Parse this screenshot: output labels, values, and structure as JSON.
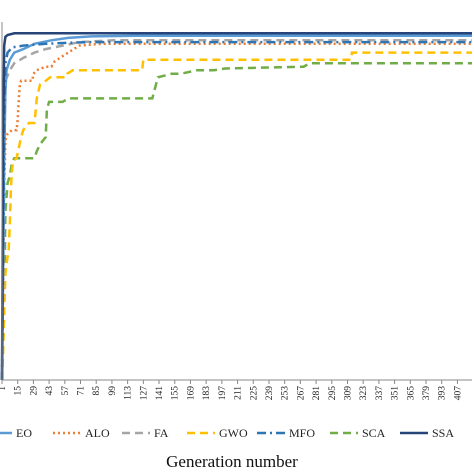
{
  "chart_data": {
    "type": "line",
    "title": "",
    "xlabel": "Generation number",
    "ylabel": "",
    "grid": false,
    "legend_position": "bottom",
    "x_ticks": [
      "1",
      "15",
      "29",
      "43",
      "57",
      "71",
      "85",
      "99",
      "113",
      "127",
      "141",
      "155",
      "169",
      "183",
      "197",
      "211",
      "225",
      "239",
      "253",
      "267",
      "281",
      "295",
      "309",
      "323",
      "337",
      "351",
      "365",
      "379",
      "393",
      "407"
    ],
    "xlim": [
      1,
      420
    ],
    "ylim": [
      0,
      1
    ],
    "series": [
      {
        "name": "EO",
        "color": "#5b9bd5",
        "dash": "solid",
        "points": [
          [
            1,
            0
          ],
          [
            2,
            0.3
          ],
          [
            3,
            0.62
          ],
          [
            4,
            0.82
          ],
          [
            5,
            0.88
          ],
          [
            8,
            0.91
          ],
          [
            12,
            0.93
          ],
          [
            20,
            0.94
          ],
          [
            30,
            0.955
          ],
          [
            45,
            0.965
          ],
          [
            60,
            0.972
          ],
          [
            80,
            0.976
          ],
          [
            120,
            0.978
          ],
          [
            420,
            0.978
          ]
        ]
      },
      {
        "name": "ALO",
        "color": "#ed7d31",
        "dash": "dotted",
        "points": [
          [
            1,
            0
          ],
          [
            2,
            0.25
          ],
          [
            3,
            0.55
          ],
          [
            4,
            0.68
          ],
          [
            6,
            0.7
          ],
          [
            10,
            0.71
          ],
          [
            14,
            0.71
          ],
          [
            15,
            0.74
          ],
          [
            16,
            0.8
          ],
          [
            17,
            0.84
          ],
          [
            18,
            0.85
          ],
          [
            28,
            0.85
          ],
          [
            29,
            0.87
          ],
          [
            32,
            0.88
          ],
          [
            40,
            0.89
          ],
          [
            45,
            0.89
          ],
          [
            48,
            0.905
          ],
          [
            55,
            0.92
          ],
          [
            60,
            0.93
          ],
          [
            70,
            0.95
          ],
          [
            90,
            0.955
          ],
          [
            420,
            0.955
          ]
        ]
      },
      {
        "name": "FA",
        "color": "#a5a5a5",
        "dash": "dashed",
        "points": [
          [
            1,
            0
          ],
          [
            2,
            0.45
          ],
          [
            3,
            0.75
          ],
          [
            4,
            0.85
          ],
          [
            8,
            0.88
          ],
          [
            12,
            0.9
          ],
          [
            20,
            0.915
          ],
          [
            30,
            0.93
          ],
          [
            40,
            0.94
          ],
          [
            55,
            0.95
          ],
          [
            70,
            0.96
          ],
          [
            100,
            0.965
          ],
          [
            420,
            0.965
          ]
        ]
      },
      {
        "name": "GWO",
        "color": "#ffc000",
        "dash": "dashed",
        "points": [
          [
            1,
            0
          ],
          [
            2,
            0.08
          ],
          [
            3,
            0.2
          ],
          [
            4,
            0.3
          ],
          [
            5,
            0.33
          ],
          [
            7,
            0.37
          ],
          [
            8,
            0.45
          ],
          [
            9,
            0.55
          ],
          [
            10,
            0.6
          ],
          [
            11,
            0.62
          ],
          [
            12,
            0.625
          ],
          [
            14,
            0.63
          ],
          [
            16,
            0.66
          ],
          [
            18,
            0.69
          ],
          [
            20,
            0.71
          ],
          [
            22,
            0.72
          ],
          [
            25,
            0.73
          ],
          [
            30,
            0.73
          ],
          [
            32,
            0.8
          ],
          [
            35,
            0.84
          ],
          [
            40,
            0.85
          ],
          [
            44,
            0.86
          ],
          [
            58,
            0.86
          ],
          [
            59,
            0.87
          ],
          [
            64,
            0.88
          ],
          [
            126,
            0.88
          ],
          [
            127,
            0.91
          ],
          [
            312,
            0.91
          ],
          [
            313,
            0.93
          ],
          [
            420,
            0.93
          ]
        ]
      },
      {
        "name": "MFO",
        "color": "#2e75b6",
        "dash": "dashdot",
        "points": [
          [
            1,
            0
          ],
          [
            2,
            0.4
          ],
          [
            3,
            0.75
          ],
          [
            4,
            0.9
          ],
          [
            6,
            0.93
          ],
          [
            10,
            0.945
          ],
          [
            20,
            0.95
          ],
          [
            40,
            0.955
          ],
          [
            60,
            0.958
          ],
          [
            80,
            0.96
          ],
          [
            420,
            0.96
          ]
        ]
      },
      {
        "name": "SCA",
        "color": "#70ad47",
        "dash": "dashed",
        "points": [
          [
            1,
            0
          ],
          [
            2,
            0.1
          ],
          [
            3,
            0.2
          ],
          [
            4,
            0.48
          ],
          [
            5,
            0.52
          ],
          [
            6,
            0.56
          ],
          [
            8,
            0.58
          ],
          [
            10,
            0.62
          ],
          [
            12,
            0.63
          ],
          [
            30,
            0.63
          ],
          [
            32,
            0.65
          ],
          [
            35,
            0.67
          ],
          [
            40,
            0.69
          ],
          [
            41,
            0.77
          ],
          [
            43,
            0.79
          ],
          [
            55,
            0.79
          ],
          [
            60,
            0.8
          ],
          [
            135,
            0.8
          ],
          [
            140,
            0.86
          ],
          [
            152,
            0.87
          ],
          [
            160,
            0.87
          ],
          [
            175,
            0.88
          ],
          [
            190,
            0.88
          ],
          [
            200,
            0.885
          ],
          [
            270,
            0.89
          ],
          [
            275,
            0.9
          ],
          [
            420,
            0.9
          ]
        ]
      },
      {
        "name": "SSA",
        "color": "#264478",
        "dash": "solid",
        "points": [
          [
            1,
            0
          ],
          [
            2,
            0.7
          ],
          [
            3,
            0.95
          ],
          [
            4,
            0.975
          ],
          [
            6,
            0.98
          ],
          [
            12,
            0.985
          ],
          [
            420,
            0.985
          ]
        ]
      }
    ]
  }
}
